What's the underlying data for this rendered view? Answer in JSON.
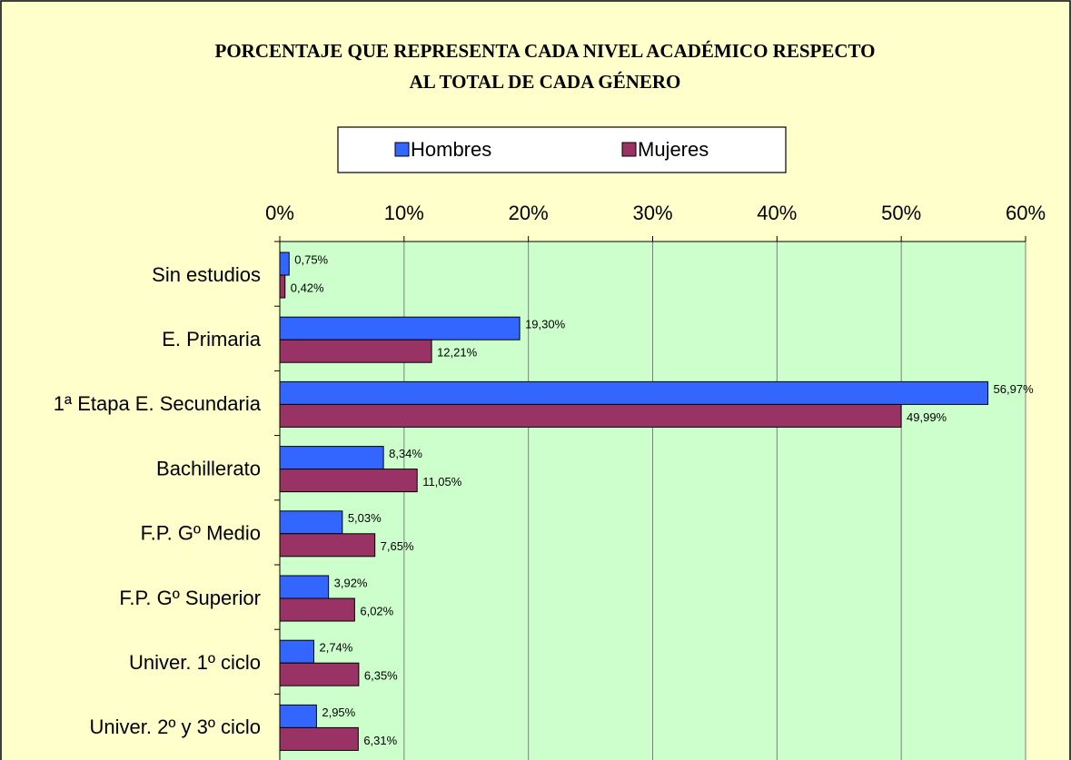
{
  "chart_data": {
    "type": "barh",
    "title": [
      "PORCENTAJE QUE REPRESENTA CADA NIVEL ACADÉMICO RESPECTO",
      "AL TOTAL DE CADA GÉNERO"
    ],
    "categories": [
      "Sin estudios",
      "E. Primaria",
      "1ª Etapa E. Secundaria",
      "Bachillerato",
      "F.P. Gº Medio",
      "F.P. Gº Superior",
      "Univer. 1º ciclo",
      "Univer. 2º y 3º ciclo"
    ],
    "series": [
      {
        "name": "Hombres",
        "color": "#3366ff",
        "values": [
          0.75,
          19.3,
          56.97,
          8.34,
          5.03,
          3.92,
          2.74,
          2.95
        ],
        "value_labels": [
          "0,75%",
          "19,30%",
          "56,97%",
          "8,34%",
          "5,03%",
          "3,92%",
          "2,74%",
          "2,95%"
        ]
      },
      {
        "name": "Mujeres",
        "color": "#993366",
        "values": [
          0.42,
          12.21,
          49.99,
          11.05,
          7.65,
          6.02,
          6.35,
          6.31
        ],
        "value_labels": [
          "0,42%",
          "12,21%",
          "49,99%",
          "11,05%",
          "7,65%",
          "6,02%",
          "6,35%",
          "6,31%"
        ]
      }
    ],
    "xlim": [
      0,
      60
    ],
    "xticks": [
      {
        "value": 0,
        "label": "0%"
      },
      {
        "value": 10,
        "label": "10%"
      },
      {
        "value": 20,
        "label": "20%"
      },
      {
        "value": 30,
        "label": "30%"
      },
      {
        "value": 40,
        "label": "40%"
      },
      {
        "value": 50,
        "label": "50%"
      },
      {
        "value": 60,
        "label": "60%"
      }
    ],
    "grid": true,
    "legend": "top"
  }
}
